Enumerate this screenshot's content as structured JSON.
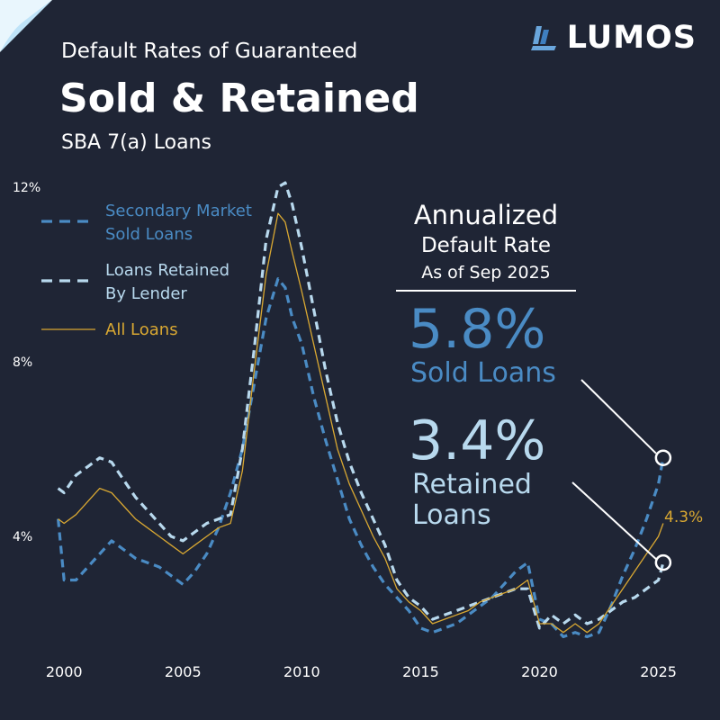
{
  "brand": {
    "name": "LUMOS"
  },
  "title": {
    "line1": "Default Rates of Guaranteed",
    "line2": "Sold & Retained",
    "line3": "SBA 7(a) Loans"
  },
  "annotation": {
    "heading1": "Annualized",
    "heading2": "Default Rate",
    "heading3": "As of Sep 2025",
    "sold_value": "5.8%",
    "sold_label": "Sold Loans",
    "retained_value": "3.4%",
    "retained_label_1": "Retained",
    "retained_label_2": "Loans",
    "all_value_label": "4.3%"
  },
  "colors": {
    "background": "#1f2535",
    "sold": "#4a8bc4",
    "retained": "#b8d9ee",
    "all": "#d9a832",
    "text": "#ffffff"
  },
  "chart_data": {
    "type": "line",
    "x_ticks": [
      "2000",
      "2005",
      "2010",
      "2015",
      "2020",
      "2025"
    ],
    "y_ticks": [
      "4%",
      "8%",
      "12%"
    ],
    "xlim": [
      1999.5,
      2026
    ],
    "ylim": [
      0,
      12
    ],
    "legend": [
      "Secondary Market Sold Loans",
      "Loans Retained By Lender",
      "All Loans"
    ],
    "series": [
      {
        "name": "Secondary Market Sold Loans",
        "style": "dashed",
        "x": [
          1999.75,
          2000.0,
          2000.5,
          2001.0,
          2001.5,
          2002.0,
          2002.5,
          2003.0,
          2003.5,
          2004.0,
          2004.5,
          2005.0,
          2005.5,
          2006.0,
          2006.5,
          2007.0,
          2007.5,
          2008.0,
          2008.5,
          2009.0,
          2009.3,
          2009.6,
          2010.0,
          2010.5,
          2011.0,
          2011.5,
          2012.0,
          2012.5,
          2013.0,
          2013.5,
          2014.0,
          2014.5,
          2015.0,
          2015.5,
          2016.0,
          2016.5,
          2017.0,
          2017.5,
          2018.0,
          2018.5,
          2019.0,
          2019.5,
          2020.0,
          2020.5,
          2021.0,
          2021.5,
          2022.0,
          2022.5,
          2023.0,
          2023.5,
          2024.0,
          2024.5,
          2025.0,
          2025.2
        ],
        "values": [
          4.4,
          3.0,
          3.0,
          3.3,
          3.6,
          3.9,
          3.7,
          3.5,
          3.4,
          3.3,
          3.1,
          2.9,
          3.2,
          3.6,
          4.2,
          5.0,
          6.0,
          7.5,
          9.0,
          9.9,
          9.7,
          9.0,
          8.4,
          7.2,
          6.2,
          5.3,
          4.4,
          3.8,
          3.3,
          2.9,
          2.6,
          2.3,
          1.9,
          1.8,
          1.9,
          2.0,
          2.2,
          2.4,
          2.6,
          2.9,
          3.2,
          3.4,
          2.1,
          2.0,
          1.7,
          1.8,
          1.7,
          1.8,
          2.4,
          3.1,
          3.7,
          4.4,
          5.2,
          5.8
        ]
      },
      {
        "name": "Loans Retained By Lender",
        "style": "dashed",
        "x": [
          1999.75,
          2000.0,
          2000.5,
          2001.0,
          2001.5,
          2002.0,
          2002.5,
          2003.0,
          2003.5,
          2004.0,
          2004.5,
          2005.0,
          2005.5,
          2006.0,
          2006.5,
          2007.0,
          2007.5,
          2008.0,
          2008.5,
          2009.0,
          2009.3,
          2009.6,
          2010.0,
          2010.5,
          2011.0,
          2011.5,
          2012.0,
          2012.5,
          2013.0,
          2013.5,
          2014.0,
          2014.5,
          2015.0,
          2015.5,
          2016.0,
          2016.5,
          2017.0,
          2017.5,
          2018.0,
          2018.5,
          2019.0,
          2019.5,
          2020.0,
          2020.5,
          2021.0,
          2021.5,
          2022.0,
          2022.5,
          2023.0,
          2023.5,
          2024.0,
          2024.5,
          2025.0,
          2025.2
        ],
        "values": [
          5.1,
          5.0,
          5.4,
          5.6,
          5.8,
          5.7,
          5.3,
          4.9,
          4.6,
          4.3,
          4.0,
          3.9,
          4.1,
          4.3,
          4.4,
          4.5,
          6.0,
          8.3,
          10.8,
          12.0,
          12.1,
          11.6,
          10.6,
          9.2,
          7.8,
          6.6,
          5.7,
          5.0,
          4.4,
          3.8,
          3.0,
          2.6,
          2.4,
          2.1,
          2.2,
          2.3,
          2.4,
          2.5,
          2.6,
          2.7,
          2.8,
          2.8,
          1.9,
          2.2,
          2.0,
          2.2,
          2.0,
          2.1,
          2.3,
          2.5,
          2.6,
          2.8,
          3.0,
          3.4
        ]
      },
      {
        "name": "All Loans",
        "style": "solid",
        "x": [
          1999.75,
          2000.0,
          2000.5,
          2001.0,
          2001.5,
          2002.0,
          2002.5,
          2003.0,
          2003.5,
          2004.0,
          2004.5,
          2005.0,
          2005.5,
          2006.0,
          2006.5,
          2007.0,
          2007.5,
          2008.0,
          2008.5,
          2009.0,
          2009.3,
          2009.6,
          2010.0,
          2010.5,
          2011.0,
          2011.5,
          2012.0,
          2012.5,
          2013.0,
          2013.5,
          2014.0,
          2014.5,
          2015.0,
          2015.5,
          2016.0,
          2016.5,
          2017.0,
          2017.5,
          2018.0,
          2018.5,
          2019.0,
          2019.5,
          2020.0,
          2020.5,
          2021.0,
          2021.5,
          2022.0,
          2022.5,
          2023.0,
          2023.5,
          2024.0,
          2024.5,
          2025.0,
          2025.2
        ],
        "values": [
          4.4,
          4.3,
          4.5,
          4.8,
          5.1,
          5.0,
          4.7,
          4.4,
          4.2,
          4.0,
          3.8,
          3.6,
          3.8,
          4.0,
          4.2,
          4.3,
          5.5,
          7.8,
          10.0,
          11.4,
          11.2,
          10.5,
          9.6,
          8.4,
          7.2,
          6.0,
          5.2,
          4.6,
          4.0,
          3.5,
          2.8,
          2.5,
          2.3,
          2.0,
          2.1,
          2.2,
          2.3,
          2.5,
          2.6,
          2.7,
          2.8,
          3.0,
          2.0,
          2.0,
          1.8,
          2.0,
          1.8,
          2.0,
          2.4,
          2.8,
          3.2,
          3.6,
          4.0,
          4.3
        ]
      }
    ]
  }
}
